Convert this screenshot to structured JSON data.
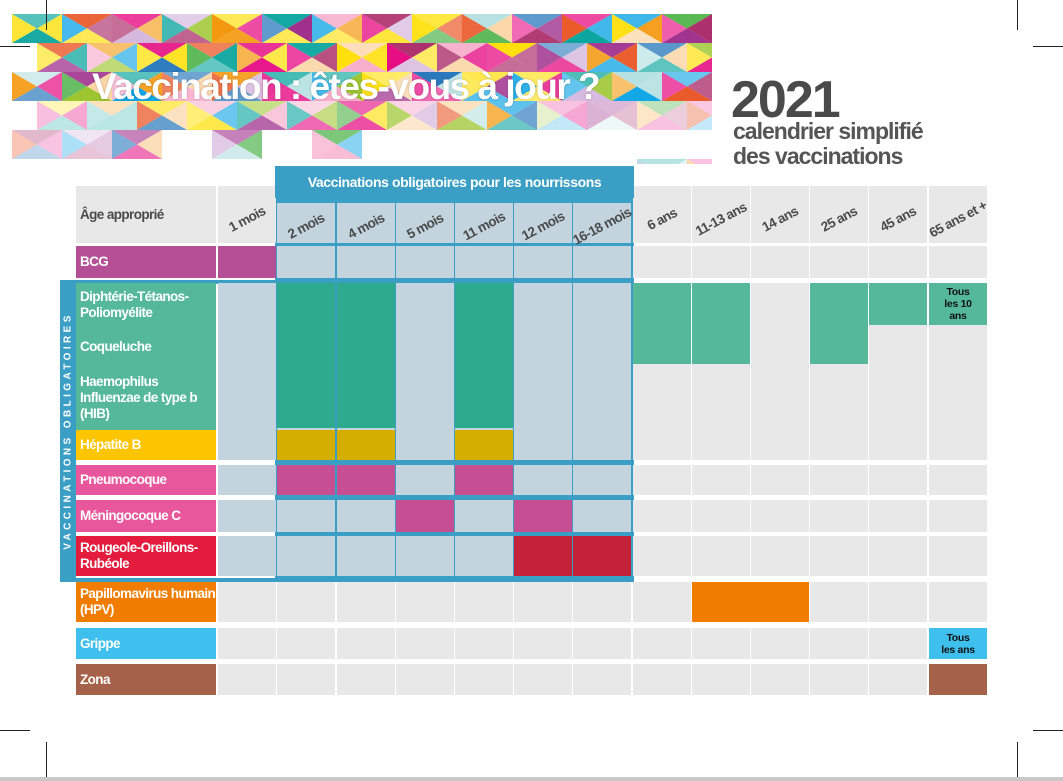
{
  "header": {
    "title": "Vaccination : êtes-vous à jour ?",
    "year": "2021",
    "subtitle_line1": "calendrier simplifié",
    "subtitle_line2": "des vaccinations"
  },
  "table": {
    "corner_label": "Âge approprié",
    "infant_band_label": "Vaccinations obligatoires pour les nourrissons",
    "mandatory_band_label": "VACCINATIONS OBLIGATOIRES",
    "columns": [
      "1 mois",
      "2 mois",
      "4 mois",
      "5 mois",
      "11 mois",
      "12 mois",
      "16-18 mois",
      "6 ans",
      "11-13 ans",
      "14 ans",
      "25 ans",
      "45 ans",
      "65 ans et +"
    ],
    "rows": [
      {
        "key": "bcg",
        "label": "BCG",
        "color": "#b44f96"
      },
      {
        "key": "dtp",
        "label": "Diphtérie-Tétanos-Poliomyélite",
        "color": "#55b999"
      },
      {
        "key": "coq",
        "label": "Coqueluche",
        "color": "#55b999"
      },
      {
        "key": "hib",
        "label": "Haemophilus Influenzae de type b (HIB)",
        "color": "#55b999"
      },
      {
        "key": "hepb",
        "label": "Hépatite B",
        "color": "#fdc400"
      },
      {
        "key": "pneumo",
        "label": "Pneumocoque",
        "color": "#e8579b"
      },
      {
        "key": "meningo",
        "label": "Méningocoque C",
        "color": "#e8579b"
      },
      {
        "key": "ror",
        "label": "Rougeole-Oreillons-Rubéole",
        "color": "#e31c3d"
      },
      {
        "key": "hpv",
        "label": "Papillomavirus humain (HPV)",
        "color": "#f07d00"
      },
      {
        "key": "grippe",
        "label": "Grippe",
        "color": "#3fbfee"
      },
      {
        "key": "zona",
        "label": "Zona",
        "color": "#a6614a"
      }
    ],
    "doses": [
      {
        "from": "bcg",
        "to": "bcg",
        "cols": [
          "1 mois"
        ],
        "color": "#b44f96"
      },
      {
        "from": "dtp",
        "to": "hib",
        "cols": [
          "2 mois"
        ],
        "color": "#2eaa8e"
      },
      {
        "from": "dtp",
        "to": "hib",
        "cols": [
          "4 mois"
        ],
        "color": "#2eaa8e"
      },
      {
        "from": "dtp",
        "to": "hib",
        "cols": [
          "11 mois"
        ],
        "color": "#2eaa8e"
      },
      {
        "from": "dtp",
        "to": "coq",
        "cols": [
          "6 ans"
        ],
        "color": "#55b999"
      },
      {
        "from": "dtp",
        "to": "coq",
        "cols": [
          "11-13 ans"
        ],
        "color": "#55b999"
      },
      {
        "from": "dtp",
        "to": "coq",
        "cols": [
          "25 ans"
        ],
        "color": "#55b999"
      },
      {
        "from": "dtp",
        "to": "dtp",
        "cols": [
          "45 ans"
        ],
        "color": "#55b999"
      },
      {
        "from": "dtp",
        "to": "dtp",
        "cols": [
          "65 ans et +"
        ],
        "color": "#55b999",
        "note": "Tous les 10 ans"
      },
      {
        "from": "hepb",
        "to": "hepb",
        "cols": [
          "2 mois"
        ],
        "color": "#d4ae00"
      },
      {
        "from": "hepb",
        "to": "hepb",
        "cols": [
          "4 mois"
        ],
        "color": "#d4ae00"
      },
      {
        "from": "hepb",
        "to": "hepb",
        "cols": [
          "11 mois"
        ],
        "color": "#d4ae00"
      },
      {
        "from": "pneumo",
        "to": "pneumo",
        "cols": [
          "2 mois"
        ],
        "color": "#c64f93"
      },
      {
        "from": "pneumo",
        "to": "pneumo",
        "cols": [
          "4 mois"
        ],
        "color": "#c64f93"
      },
      {
        "from": "pneumo",
        "to": "pneumo",
        "cols": [
          "11 mois"
        ],
        "color": "#c64f93"
      },
      {
        "from": "meningo",
        "to": "meningo",
        "cols": [
          "5 mois"
        ],
        "color": "#c64f93"
      },
      {
        "from": "meningo",
        "to": "meningo",
        "cols": [
          "12 mois"
        ],
        "color": "#c64f93"
      },
      {
        "from": "ror",
        "to": "ror",
        "cols": [
          "12 mois"
        ],
        "color": "#c4213a"
      },
      {
        "from": "ror",
        "to": "ror",
        "cols": [
          "16-18 mois"
        ],
        "color": "#c4213a"
      },
      {
        "from": "hpv",
        "to": "hpv",
        "cols": [
          "11-13 ans",
          "14 ans"
        ],
        "color": "#f07d00"
      },
      {
        "from": "grippe",
        "to": "grippe",
        "cols": [
          "65 ans et +"
        ],
        "color": "#3fbfee",
        "note": "Tous les ans"
      },
      {
        "from": "zona",
        "to": "zona",
        "cols": [
          "65 ans et +"
        ],
        "color": "#a6614a"
      }
    ]
  },
  "colors": {
    "frame": "#3b9ec4",
    "cell_gray": "#e8e8e8",
    "cell_infant": "#c3d4de",
    "title_gray": "#4a4a4a"
  }
}
